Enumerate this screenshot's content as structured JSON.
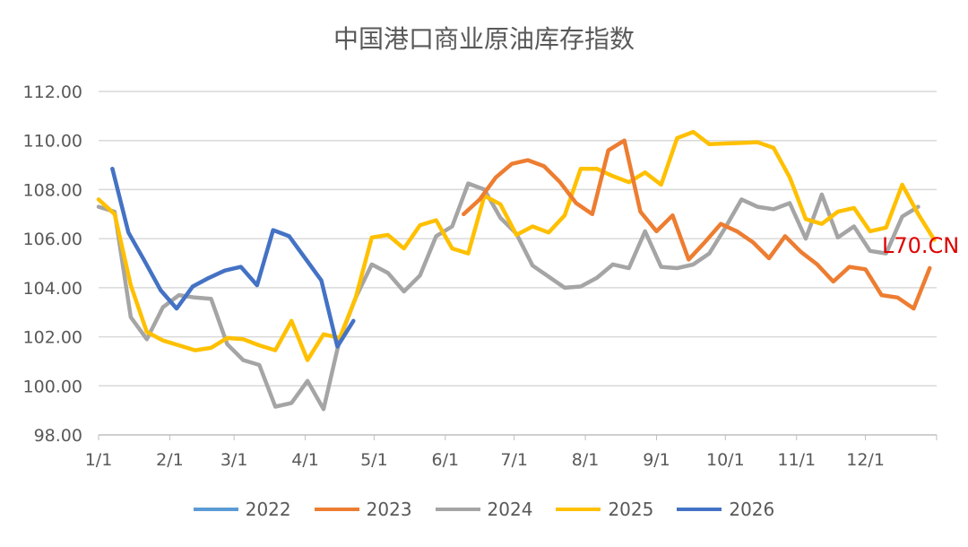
{
  "chart_data": {
    "type": "line",
    "title": "中国港口商业原油库存指数",
    "xlabel": "",
    "ylabel": "",
    "ylim": [
      98,
      112
    ],
    "yticks": [
      "98.00",
      "100.00",
      "102.00",
      "104.00",
      "106.00",
      "108.00",
      "110.00",
      "112.00"
    ],
    "xticks": [
      "1/1",
      "2/1",
      "3/1",
      "4/1",
      "5/1",
      "6/1",
      "7/1",
      "8/1",
      "9/1",
      "10/1",
      "11/1",
      "12/1"
    ],
    "xtick_days": [
      0,
      31,
      59,
      90,
      120,
      151,
      181,
      212,
      243,
      273,
      304,
      334
    ],
    "x_unit": "day of year",
    "step_days": 7,
    "grid": true,
    "legend": "bottom",
    "series": [
      {
        "name": "2022",
        "color": "#5b9bd5",
        "start_day": 0,
        "values": []
      },
      {
        "name": "2023",
        "color": "#ed7d31",
        "start_day": 159,
        "values": [
          107.0,
          107.6,
          108.5,
          109.05,
          109.2,
          108.95,
          108.3,
          107.45,
          107.0,
          109.6,
          110.0,
          107.1,
          106.3,
          106.95,
          105.15,
          105.85,
          106.6,
          106.3,
          105.85,
          105.2,
          106.1,
          105.45,
          104.95,
          104.25,
          104.85,
          104.75,
          103.7,
          103.6,
          103.15,
          104.8
        ]
      },
      {
        "name": "2024",
        "color": "#a5a5a5",
        "start_day": 0,
        "values": [
          107.3,
          107.1,
          102.8,
          101.9,
          103.2,
          103.7,
          103.6,
          103.55,
          101.7,
          101.05,
          100.85,
          99.15,
          99.3,
          100.2,
          99.05,
          101.9,
          103.6,
          104.95,
          104.6,
          103.85,
          104.5,
          106.1,
          106.5,
          108.25,
          108.0,
          106.85,
          106.2,
          104.9,
          104.45,
          104.0,
          104.05,
          104.4,
          104.95,
          104.8,
          106.3,
          104.85,
          104.8,
          104.95,
          105.4,
          106.45,
          107.6,
          107.3,
          107.2,
          107.45,
          106.0,
          107.8,
          106.05,
          106.5,
          105.5,
          105.4,
          106.9,
          107.3
        ]
      },
      {
        "name": "2025",
        "color": "#ffc000",
        "start_day": 0,
        "values": [
          107.6,
          107.0,
          104.1,
          102.2,
          101.85,
          101.65,
          101.45,
          101.55,
          101.95,
          101.9,
          101.65,
          101.45,
          102.65,
          101.05,
          102.1,
          101.95,
          103.6,
          106.05,
          106.15,
          105.6,
          106.55,
          106.75,
          105.6,
          105.4,
          107.75,
          107.4,
          106.15,
          106.5,
          106.25,
          106.95,
          108.85,
          108.85,
          108.55,
          108.3,
          108.7,
          108.2,
          110.1,
          110.35,
          109.85,
          109.88,
          109.9,
          109.93,
          109.7,
          108.5,
          106.8,
          106.6,
          107.1,
          107.25,
          106.3,
          106.45,
          108.2,
          107.0,
          105.95
        ]
      },
      {
        "name": "2026",
        "color": "#4472c4",
        "start_day": 6,
        "values": [
          108.85,
          106.25,
          105.1,
          103.9,
          103.15,
          104.05,
          104.4,
          104.7,
          104.85,
          104.1,
          106.35,
          106.1,
          105.2,
          104.3,
          101.6,
          102.65
        ]
      }
    ]
  },
  "watermark": "L70.CN"
}
